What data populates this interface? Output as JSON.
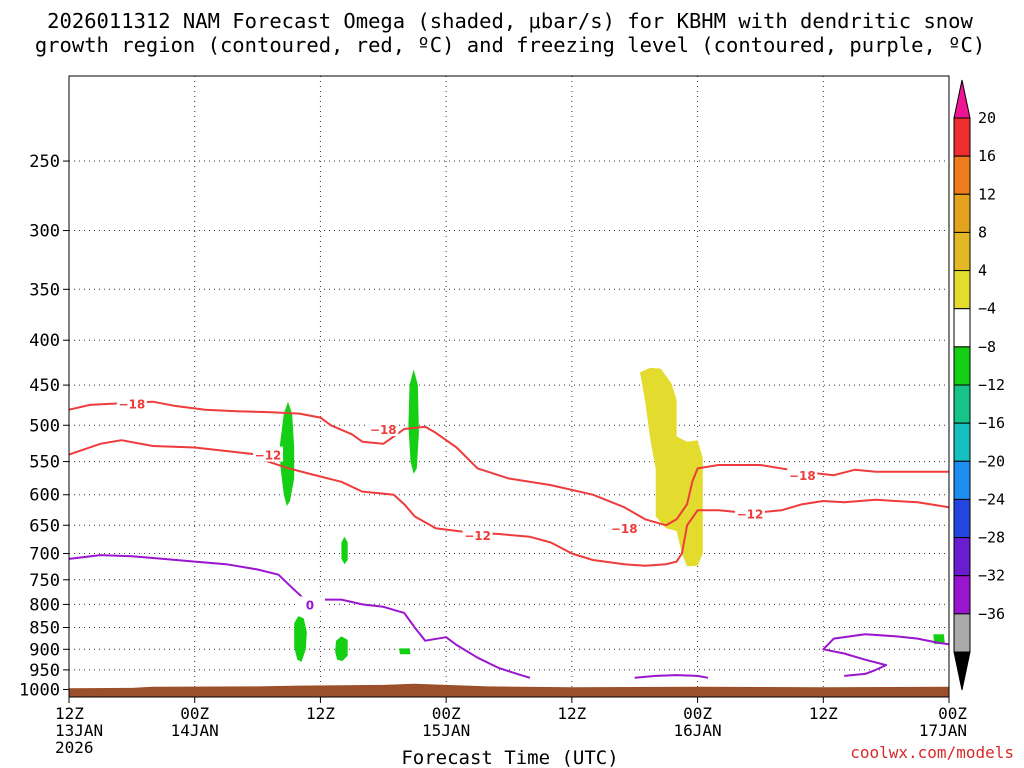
{
  "chart_data": {
    "type": "time-height cross section",
    "title_line1": "2026011312 NAM Forecast Omega (shaded, μbar/s) for KBHM with dendritic snow",
    "title_line2": "growth region (contoured, red, ºC) and freezing level (contoured, purple, ºC)",
    "xlabel": "Forecast Time (UTC)",
    "credit": "coolwx.com/models",
    "y_axis": {
      "unit": "hPa",
      "range": [
        1020,
        200
      ],
      "ticks": [
        250,
        300,
        350,
        400,
        450,
        500,
        550,
        600,
        650,
        700,
        750,
        800,
        850,
        900,
        950,
        1000
      ]
    },
    "x_axis": {
      "unit": "forecast hour",
      "range": [
        0,
        84
      ],
      "ticks": [
        {
          "hour": 0,
          "label": "12Z",
          "date": "13JAN",
          "year": "2026"
        },
        {
          "hour": 12,
          "label": "00Z",
          "date": "14JAN"
        },
        {
          "hour": 24,
          "label": "12Z",
          "date": ""
        },
        {
          "hour": 36,
          "label": "00Z",
          "date": "15JAN"
        },
        {
          "hour": 48,
          "label": "12Z",
          "date": ""
        },
        {
          "hour": 60,
          "label": "00Z",
          "date": "16JAN"
        },
        {
          "hour": 72,
          "label": "12Z",
          "date": ""
        },
        {
          "hour": 84,
          "label": "00Z",
          "date": "17JAN"
        }
      ]
    },
    "colorbar": {
      "labels": [
        "20",
        "16",
        "12",
        "8",
        "4",
        "−4",
        "−8",
        "−12",
        "−16",
        "−20",
        "−24",
        "−28",
        "−32",
        "−36"
      ],
      "colors": [
        "#ee1493",
        "#ee2e2e",
        "#ee7b1c",
        "#e3a31f",
        "#e2b824",
        "#e4db2f",
        "#ffffff",
        "#14cf14",
        "#16c48a",
        "#17bfbf",
        "#1e8ff0",
        "#2346e0",
        "#6a1ccf",
        "#9a15cf",
        "#aaaaaa",
        "#000000"
      ]
    },
    "ground_color": "#9b4f2a",
    "contours": [
      {
        "name": "-18",
        "color": "#ee3b3b",
        "label": "−18",
        "points": [
          [
            0,
            480
          ],
          [
            2,
            474
          ],
          [
            5,
            472
          ],
          [
            8,
            470
          ],
          [
            10,
            475
          ],
          [
            13,
            480
          ],
          [
            16,
            482
          ],
          [
            19,
            483
          ],
          [
            22,
            485
          ],
          [
            24,
            490
          ],
          [
            25,
            500
          ],
          [
            27,
            512
          ],
          [
            28,
            522
          ],
          [
            30,
            525
          ],
          [
            31,
            515
          ],
          [
            32,
            505
          ],
          [
            34,
            502
          ],
          [
            35,
            510
          ],
          [
            37,
            530
          ],
          [
            39,
            560
          ],
          [
            42,
            575
          ],
          [
            46,
            585
          ],
          [
            50,
            600
          ],
          [
            53,
            620
          ],
          [
            55,
            640
          ],
          [
            57,
            650
          ],
          [
            58,
            640
          ],
          [
            59,
            615
          ],
          [
            59.5,
            580
          ],
          [
            60,
            560
          ],
          [
            62,
            555
          ],
          [
            66,
            555
          ],
          [
            70,
            565
          ],
          [
            73,
            570
          ],
          [
            75,
            562
          ],
          [
            77,
            565
          ],
          [
            80,
            565
          ],
          [
            83,
            565
          ],
          [
            84,
            565
          ]
        ],
        "labels_at": [
          [
            6,
            472
          ],
          [
            30,
            505
          ],
          [
            53,
            655
          ],
          [
            70,
            570
          ]
        ]
      },
      {
        "name": "-12",
        "color": "#ee3b3b",
        "label": "−12",
        "points": [
          [
            0,
            540
          ],
          [
            3,
            525
          ],
          [
            5,
            520
          ],
          [
            8,
            528
          ],
          [
            12,
            530
          ],
          [
            15,
            535
          ],
          [
            18,
            540
          ],
          [
            19,
            550
          ],
          [
            21,
            560
          ],
          [
            23,
            568
          ],
          [
            26,
            580
          ],
          [
            28,
            595
          ],
          [
            31,
            600
          ],
          [
            32,
            615
          ],
          [
            33,
            635
          ],
          [
            35,
            655
          ],
          [
            38,
            662
          ],
          [
            41,
            665
          ],
          [
            44,
            670
          ],
          [
            46,
            680
          ],
          [
            48,
            700
          ],
          [
            50,
            712
          ],
          [
            53,
            720
          ],
          [
            55,
            723
          ],
          [
            57,
            720
          ],
          [
            58,
            715
          ],
          [
            58.5,
            700
          ],
          [
            59,
            650
          ],
          [
            60,
            625
          ],
          [
            62,
            625
          ],
          [
            65,
            630
          ],
          [
            68,
            625
          ],
          [
            70,
            615
          ],
          [
            72,
            610
          ],
          [
            74,
            612
          ],
          [
            77,
            608
          ],
          [
            81,
            612
          ],
          [
            84,
            620
          ]
        ],
        "labels_at": [
          [
            19,
            540
          ],
          [
            39,
            667
          ],
          [
            65,
            630
          ]
        ]
      },
      {
        "name": "0",
        "color": "#9a15cf",
        "label": "0",
        "points": [
          [
            0,
            710
          ],
          [
            3,
            703
          ],
          [
            6,
            705
          ],
          [
            9,
            710
          ],
          [
            12,
            715
          ],
          [
            15,
            720
          ],
          [
            18,
            730
          ],
          [
            20,
            740
          ],
          [
            21,
            760
          ],
          [
            22,
            780
          ],
          [
            23,
            800
          ],
          [
            24,
            790
          ],
          [
            26,
            790
          ],
          [
            28,
            800
          ],
          [
            30,
            805
          ],
          [
            32,
            818
          ],
          [
            33,
            850
          ],
          [
            34,
            880
          ],
          [
            36,
            872
          ],
          [
            37,
            890
          ],
          [
            39,
            920
          ],
          [
            41,
            945
          ],
          [
            43,
            962
          ],
          [
            44,
            970
          ]
        ],
        "labels_at": [
          [
            23,
            800
          ]
        ]
      },
      {
        "name": "0-surface",
        "color": "#9a15cf",
        "label": "",
        "points": [
          [
            54,
            970
          ],
          [
            56,
            965
          ],
          [
            58,
            963
          ],
          [
            60,
            965
          ],
          [
            61,
            970
          ]
        ],
        "labels_at": []
      },
      {
        "name": "0-east",
        "color": "#9a15cf",
        "label": "",
        "points": [
          [
            74,
            965
          ],
          [
            76,
            960
          ],
          [
            77,
            950
          ],
          [
            78,
            938
          ],
          [
            76,
            925
          ],
          [
            74,
            910
          ],
          [
            72,
            900
          ],
          [
            73,
            875
          ],
          [
            76,
            865
          ],
          [
            79,
            870
          ],
          [
            81,
            875
          ],
          [
            83,
            885
          ],
          [
            84,
            888
          ]
        ],
        "labels_at": []
      }
    ],
    "omega_shading": [
      {
        "color": "#e4db2f",
        "value_range": [
          4,
          8
        ],
        "polygon": [
          [
            54.5,
            435
          ],
          [
            55.5,
            430
          ],
          [
            56.5,
            431
          ],
          [
            57.5,
            448
          ],
          [
            58,
            468
          ],
          [
            58,
            515
          ],
          [
            59,
            522
          ],
          [
            60,
            520
          ],
          [
            60.5,
            545
          ],
          [
            60.5,
            640
          ],
          [
            60.5,
            700
          ],
          [
            60,
            723
          ],
          [
            59,
            724
          ],
          [
            58.5,
            700
          ],
          [
            58,
            660
          ],
          [
            57,
            655
          ],
          [
            56,
            635
          ],
          [
            56,
            600
          ],
          [
            56,
            560
          ],
          [
            55.5,
            520
          ],
          [
            55,
            470
          ]
        ]
      },
      {
        "color": "#14cf14",
        "value_range": [
          -8,
          -4
        ],
        "polygon": [
          [
            20.5,
            485
          ],
          [
            20.9,
            470
          ],
          [
            21.3,
            485
          ],
          [
            21.5,
            530
          ],
          [
            21.5,
            575
          ],
          [
            21.1,
            610
          ],
          [
            20.8,
            618
          ],
          [
            20.5,
            600
          ],
          [
            20.2,
            560
          ],
          [
            20.1,
            530
          ]
        ]
      },
      {
        "color": "#14cf14",
        "value_range": [
          -8,
          -4
        ],
        "polygon": [
          [
            32.5,
            450
          ],
          [
            32.9,
            432
          ],
          [
            33.3,
            450
          ],
          [
            33.4,
            510
          ],
          [
            33.2,
            560
          ],
          [
            32.9,
            568
          ],
          [
            32.6,
            550
          ],
          [
            32.4,
            500
          ]
        ]
      },
      {
        "color": "#14cf14",
        "value_range": [
          -8,
          -4
        ],
        "polygon": [
          [
            26.0,
            680
          ],
          [
            26.3,
            670
          ],
          [
            26.6,
            680
          ],
          [
            26.6,
            712
          ],
          [
            26.3,
            720
          ],
          [
            26.0,
            710
          ]
        ]
      },
      {
        "color": "#14cf14",
        "value_range": [
          -8,
          -4
        ],
        "polygon": [
          [
            21.5,
            840
          ],
          [
            21.9,
            825
          ],
          [
            22.4,
            830
          ],
          [
            22.7,
            860
          ],
          [
            22.6,
            900
          ],
          [
            22.2,
            930
          ],
          [
            21.8,
            925
          ],
          [
            21.5,
            895
          ]
        ]
      },
      {
        "color": "#14cf14",
        "value_range": [
          -8,
          -4
        ],
        "polygon": [
          [
            25.5,
            880
          ],
          [
            26,
            870
          ],
          [
            26.6,
            878
          ],
          [
            26.6,
            915
          ],
          [
            26.1,
            928
          ],
          [
            25.6,
            925
          ],
          [
            25.4,
            905
          ]
        ]
      },
      {
        "color": "#14cf14",
        "value_range": [
          -8,
          -4
        ],
        "polygon": [
          [
            31.5,
            898
          ],
          [
            32.5,
            898
          ],
          [
            32.6,
            912
          ],
          [
            31.6,
            912
          ]
        ]
      },
      {
        "color": "#14cf14",
        "value_range": [
          -8,
          -4
        ],
        "polygon": [
          [
            82.5,
            865
          ],
          [
            83.5,
            865
          ],
          [
            83.6,
            885
          ],
          [
            82.6,
            888
          ]
        ]
      }
    ],
    "terrain": [
      [
        0,
        997
      ],
      [
        6,
        996
      ],
      [
        8,
        993
      ],
      [
        18,
        992
      ],
      [
        22,
        990
      ],
      [
        30,
        988
      ],
      [
        33,
        985
      ],
      [
        36,
        988
      ],
      [
        40,
        992
      ],
      [
        48,
        994
      ],
      [
        60,
        993
      ],
      [
        72,
        994
      ],
      [
        84,
        993
      ]
    ]
  }
}
